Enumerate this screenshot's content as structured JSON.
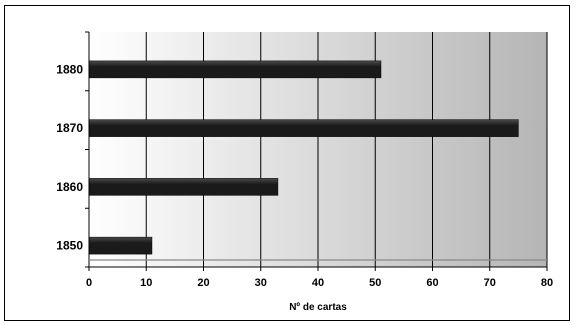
{
  "chart_data": {
    "type": "bar",
    "orientation": "horizontal",
    "categories": [
      "1850",
      "1860",
      "1870",
      "1880"
    ],
    "values": [
      11,
      33,
      75,
      51
    ],
    "xlabel": "Nº de cartas",
    "ylabel": "",
    "xlim": [
      0,
      80
    ],
    "xticks": [
      0,
      10,
      20,
      30,
      40,
      50,
      60,
      70,
      80
    ],
    "grid": true,
    "legend": "none",
    "colors": {
      "bar": "#1a1a1a",
      "bar_highlight": "#4a4a4a",
      "plot_bg_left": "#ffffff",
      "plot_bg_right": "#b5b5b5",
      "grid": "#000000"
    }
  }
}
